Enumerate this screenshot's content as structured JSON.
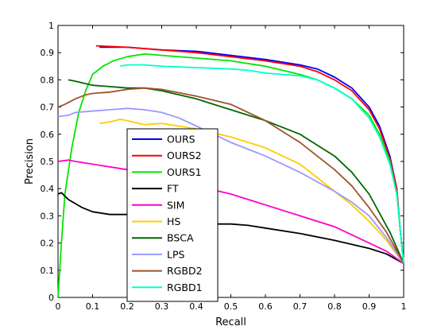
{
  "chart_data": {
    "type": "line",
    "title": "",
    "xlabel": "Recall",
    "ylabel": "Precision",
    "xlim": [
      0,
      1
    ],
    "ylim": [
      0,
      1
    ],
    "x_ticks": [
      "0",
      "0.1",
      "0.2",
      "0.3",
      "0.4",
      "0.5",
      "0.6",
      "0.7",
      "0.8",
      "0.9",
      "1"
    ],
    "y_ticks": [
      "0",
      "0.1",
      "0.2",
      "0.3",
      "0.4",
      "0.5",
      "0.6",
      "0.7",
      "0.8",
      "0.9",
      "1"
    ],
    "grid": false,
    "legend_position": "inside-center-left",
    "series": [
      {
        "name": "OURS",
        "color": "#0000ff",
        "points": [
          [
            0.12,
            0.92
          ],
          [
            0.2,
            0.92
          ],
          [
            0.3,
            0.91
          ],
          [
            0.4,
            0.905
          ],
          [
            0.5,
            0.89
          ],
          [
            0.6,
            0.875
          ],
          [
            0.7,
            0.855
          ],
          [
            0.75,
            0.84
          ],
          [
            0.8,
            0.81
          ],
          [
            0.85,
            0.77
          ],
          [
            0.9,
            0.7
          ],
          [
            0.93,
            0.63
          ],
          [
            0.96,
            0.52
          ],
          [
            0.98,
            0.4
          ],
          [
            0.99,
            0.25
          ],
          [
            1.0,
            0.125
          ]
        ]
      },
      {
        "name": "OURS2",
        "color": "#ff0000",
        "points": [
          [
            0.11,
            0.925
          ],
          [
            0.2,
            0.92
          ],
          [
            0.3,
            0.91
          ],
          [
            0.4,
            0.9
          ],
          [
            0.5,
            0.885
          ],
          [
            0.6,
            0.87
          ],
          [
            0.7,
            0.85
          ],
          [
            0.75,
            0.83
          ],
          [
            0.8,
            0.8
          ],
          [
            0.85,
            0.76
          ],
          [
            0.9,
            0.69
          ],
          [
            0.93,
            0.62
          ],
          [
            0.96,
            0.51
          ],
          [
            0.98,
            0.4
          ],
          [
            0.99,
            0.25
          ],
          [
            1.0,
            0.125
          ]
        ]
      },
      {
        "name": "OURS1",
        "color": "#00e600",
        "points": [
          [
            0.0,
            0.0
          ],
          [
            0.01,
            0.2
          ],
          [
            0.02,
            0.38
          ],
          [
            0.04,
            0.55
          ],
          [
            0.06,
            0.68
          ],
          [
            0.08,
            0.76
          ],
          [
            0.1,
            0.82
          ],
          [
            0.13,
            0.85
          ],
          [
            0.16,
            0.87
          ],
          [
            0.2,
            0.885
          ],
          [
            0.25,
            0.895
          ],
          [
            0.3,
            0.89
          ],
          [
            0.4,
            0.88
          ],
          [
            0.5,
            0.87
          ],
          [
            0.6,
            0.85
          ],
          [
            0.7,
            0.82
          ],
          [
            0.75,
            0.8
          ],
          [
            0.8,
            0.77
          ],
          [
            0.85,
            0.73
          ],
          [
            0.9,
            0.67
          ],
          [
            0.93,
            0.6
          ],
          [
            0.96,
            0.5
          ],
          [
            0.98,
            0.38
          ],
          [
            0.99,
            0.25
          ],
          [
            1.0,
            0.125
          ]
        ]
      },
      {
        "name": "FT",
        "color": "#000000",
        "points": [
          [
            0.0,
            0.38
          ],
          [
            0.01,
            0.385
          ],
          [
            0.03,
            0.36
          ],
          [
            0.05,
            0.345
          ],
          [
            0.07,
            0.33
          ],
          [
            0.1,
            0.315
          ],
          [
            0.15,
            0.305
          ],
          [
            0.2,
            0.305
          ],
          [
            0.3,
            0.3
          ],
          [
            0.4,
            0.27
          ],
          [
            0.5,
            0.27
          ],
          [
            0.55,
            0.265
          ],
          [
            0.6,
            0.255
          ],
          [
            0.7,
            0.235
          ],
          [
            0.8,
            0.21
          ],
          [
            0.9,
            0.18
          ],
          [
            0.95,
            0.16
          ],
          [
            1.0,
            0.125
          ]
        ]
      },
      {
        "name": "SIM",
        "color": "#ff00cc",
        "points": [
          [
            0.0,
            0.5
          ],
          [
            0.03,
            0.505
          ],
          [
            0.05,
            0.5
          ],
          [
            0.1,
            0.49
          ],
          [
            0.2,
            0.47
          ],
          [
            0.3,
            0.44
          ],
          [
            0.4,
            0.41
          ],
          [
            0.5,
            0.38
          ],
          [
            0.6,
            0.34
          ],
          [
            0.7,
            0.3
          ],
          [
            0.8,
            0.26
          ],
          [
            0.9,
            0.2
          ],
          [
            0.95,
            0.17
          ],
          [
            1.0,
            0.125
          ]
        ]
      },
      {
        "name": "HS",
        "color": "#ffcc00",
        "points": [
          [
            0.12,
            0.64
          ],
          [
            0.15,
            0.645
          ],
          [
            0.18,
            0.655
          ],
          [
            0.2,
            0.65
          ],
          [
            0.25,
            0.635
          ],
          [
            0.3,
            0.64
          ],
          [
            0.4,
            0.62
          ],
          [
            0.5,
            0.59
          ],
          [
            0.6,
            0.55
          ],
          [
            0.7,
            0.49
          ],
          [
            0.75,
            0.44
          ],
          [
            0.8,
            0.39
          ],
          [
            0.85,
            0.34
          ],
          [
            0.9,
            0.28
          ],
          [
            0.95,
            0.21
          ],
          [
            1.0,
            0.125
          ]
        ]
      },
      {
        "name": "BSCA",
        "color": "#006600",
        "points": [
          [
            0.03,
            0.8
          ],
          [
            0.05,
            0.795
          ],
          [
            0.1,
            0.78
          ],
          [
            0.15,
            0.775
          ],
          [
            0.2,
            0.77
          ],
          [
            0.25,
            0.77
          ],
          [
            0.3,
            0.76
          ],
          [
            0.4,
            0.73
          ],
          [
            0.5,
            0.69
          ],
          [
            0.6,
            0.65
          ],
          [
            0.7,
            0.6
          ],
          [
            0.8,
            0.52
          ],
          [
            0.85,
            0.46
          ],
          [
            0.9,
            0.38
          ],
          [
            0.93,
            0.31
          ],
          [
            0.96,
            0.24
          ],
          [
            1.0,
            0.125
          ]
        ]
      },
      {
        "name": "LPS",
        "color": "#9999ff",
        "points": [
          [
            0.0,
            0.665
          ],
          [
            0.03,
            0.67
          ],
          [
            0.05,
            0.68
          ],
          [
            0.1,
            0.685
          ],
          [
            0.15,
            0.69
          ],
          [
            0.2,
            0.695
          ],
          [
            0.25,
            0.69
          ],
          [
            0.3,
            0.68
          ],
          [
            0.35,
            0.66
          ],
          [
            0.4,
            0.63
          ],
          [
            0.5,
            0.57
          ],
          [
            0.6,
            0.52
          ],
          [
            0.7,
            0.46
          ],
          [
            0.8,
            0.39
          ],
          [
            0.85,
            0.35
          ],
          [
            0.9,
            0.3
          ],
          [
            0.95,
            0.22
          ],
          [
            1.0,
            0.125
          ]
        ]
      },
      {
        "name": "RGBD2",
        "color": "#a0522d",
        "points": [
          [
            0.0,
            0.7
          ],
          [
            0.02,
            0.71
          ],
          [
            0.05,
            0.73
          ],
          [
            0.08,
            0.745
          ],
          [
            0.1,
            0.75
          ],
          [
            0.15,
            0.755
          ],
          [
            0.2,
            0.765
          ],
          [
            0.25,
            0.77
          ],
          [
            0.3,
            0.765
          ],
          [
            0.4,
            0.74
          ],
          [
            0.5,
            0.71
          ],
          [
            0.6,
            0.65
          ],
          [
            0.7,
            0.57
          ],
          [
            0.8,
            0.47
          ],
          [
            0.85,
            0.41
          ],
          [
            0.9,
            0.33
          ],
          [
            0.95,
            0.24
          ],
          [
            1.0,
            0.125
          ]
        ]
      },
      {
        "name": "RGBD1",
        "color": "#00ffcc",
        "points": [
          [
            0.18,
            0.85
          ],
          [
            0.2,
            0.855
          ],
          [
            0.25,
            0.855
          ],
          [
            0.3,
            0.85
          ],
          [
            0.4,
            0.845
          ],
          [
            0.5,
            0.84
          ],
          [
            0.55,
            0.835
          ],
          [
            0.6,
            0.825
          ],
          [
            0.7,
            0.815
          ],
          [
            0.75,
            0.8
          ],
          [
            0.8,
            0.77
          ],
          [
            0.85,
            0.73
          ],
          [
            0.9,
            0.66
          ],
          [
            0.93,
            0.59
          ],
          [
            0.96,
            0.49
          ],
          [
            0.98,
            0.38
          ],
          [
            0.99,
            0.25
          ],
          [
            1.0,
            0.125
          ]
        ]
      }
    ]
  }
}
